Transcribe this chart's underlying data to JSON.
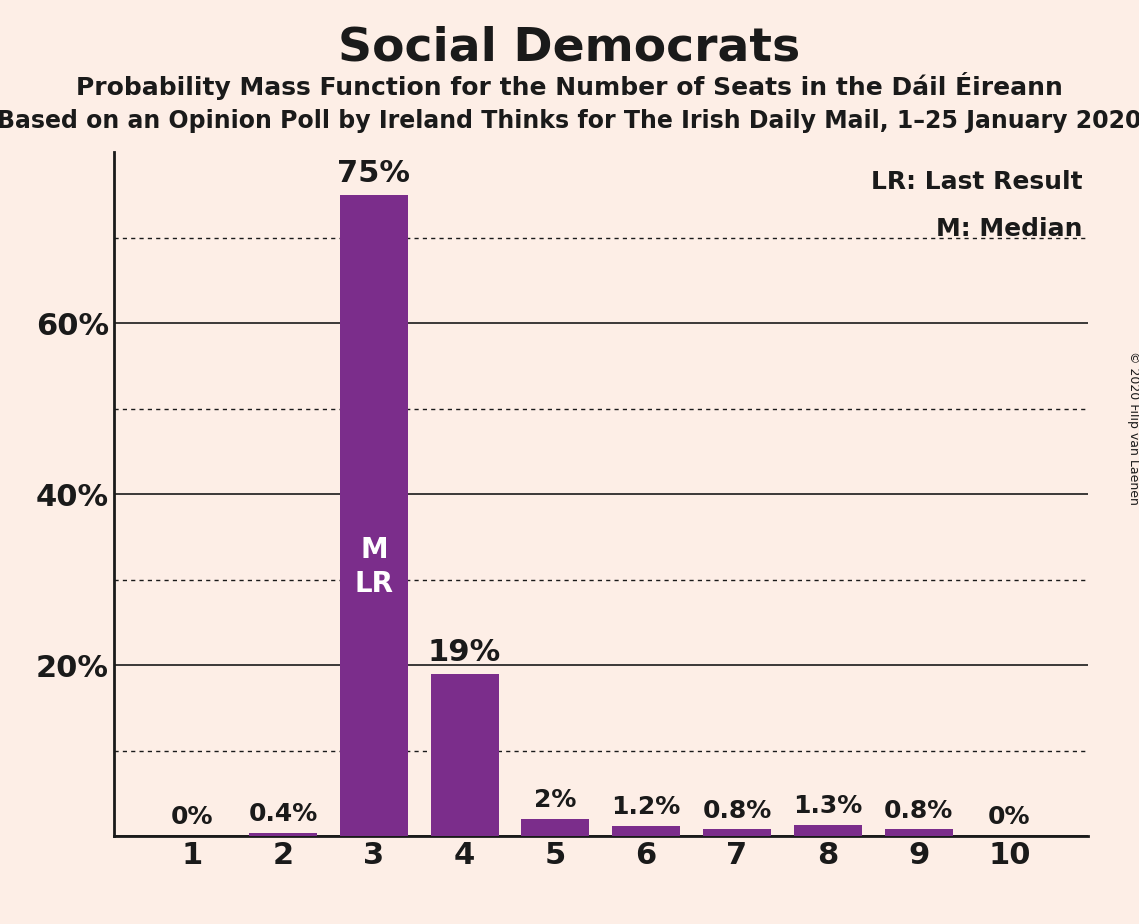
{
  "title": "Social Democrats",
  "subtitle1": "Probability Mass Function for the Number of Seats in the Dáil Éireann",
  "subtitle2": "Based on an Opinion Poll by Ireland Thinks for The Irish Daily Mail, 1–25 January 2020",
  "copyright": "© 2020 Filip van Laenen",
  "categories": [
    1,
    2,
    3,
    4,
    5,
    6,
    7,
    8,
    9,
    10
  ],
  "values": [
    0.0,
    0.4,
    75.0,
    19.0,
    2.0,
    1.2,
    0.8,
    1.3,
    0.8,
    0.0
  ],
  "labels": [
    "0%",
    "0.4%",
    "75%",
    "19%",
    "2%",
    "1.2%",
    "0.8%",
    "1.3%",
    "0.8%",
    "0%"
  ],
  "bar_color": "#7b2d8b",
  "background_color": "#fdeee6",
  "text_color": "#1a1a1a",
  "median_bar": 3,
  "last_result_bar": 3,
  "legend_lr": "LR: Last Result",
  "legend_m": "M: Median",
  "ylim": [
    0,
    80
  ],
  "solid_gridlines": [
    20,
    40,
    60
  ],
  "dotted_gridlines": [
    10,
    30,
    50,
    70
  ],
  "ytick_labels_map": {
    "20": "20%",
    "40": "40%",
    "60": "60%"
  },
  "grid_color": "#1a1a1a",
  "title_fontsize": 34,
  "subtitle1_fontsize": 18,
  "subtitle2_fontsize": 17,
  "bar_label_fontsize_large": 22,
  "bar_label_fontsize_small": 18,
  "ytick_fontsize": 22,
  "xtick_fontsize": 22,
  "legend_fontsize": 18,
  "inside_label_fontsize": 20
}
